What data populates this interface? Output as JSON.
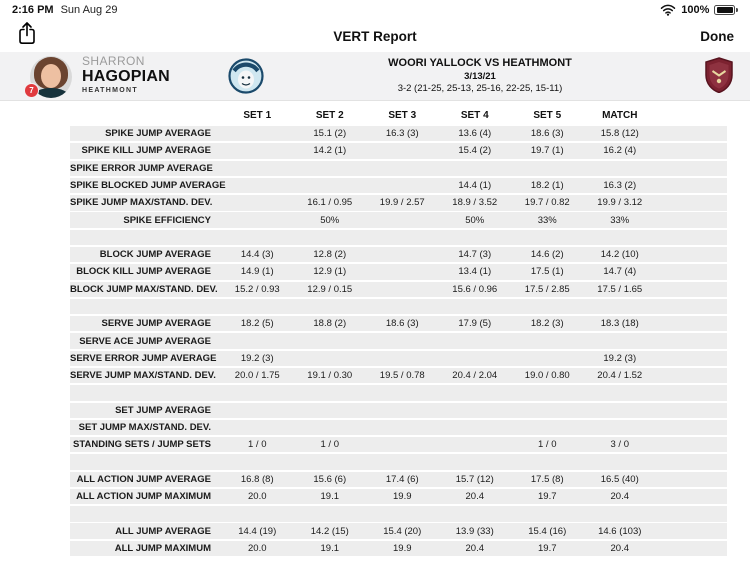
{
  "status_bar": {
    "time": "2:16 PM",
    "date": "Sun Aug 29",
    "battery_percent": "100%"
  },
  "nav": {
    "title": "VERT Report",
    "done_label": "Done"
  },
  "icons": {
    "share": "share-icon",
    "wifi": "wifi-icon",
    "battery": "battery-icon",
    "home_logo": "woori-yallock-logo",
    "away_logo": "heathmont-logo"
  },
  "colors": {
    "row_gray": "#ededed",
    "header_gray": "#f2f2f3",
    "badge_red": "#e03a3e",
    "heathmont_maroon": "#7c2230",
    "woori_blue": "#1b4a6b"
  },
  "player": {
    "first_name": "SHARRON",
    "last_name": "HAGOPIAN",
    "team": "HEATHMONT",
    "jersey_number": "7"
  },
  "match": {
    "title": "WOORI YALLOCK VS HEATHMONT",
    "date": "3/13/21",
    "score": "3-2 (21-25, 25-13, 25-16, 22-25, 15-11)"
  },
  "table": {
    "columns": [
      "SET 1",
      "SET 2",
      "SET 3",
      "SET 4",
      "SET 5",
      "MATCH"
    ],
    "rows": [
      {
        "label": "SPIKE JUMP AVERAGE",
        "values": [
          "",
          "15.1 (2)",
          "16.3 (3)",
          "13.6 (4)",
          "18.6 (3)",
          "15.8 (12)"
        ]
      },
      {
        "label": "SPIKE KILL JUMP AVERAGE",
        "values": [
          "",
          "14.2 (1)",
          "",
          "15.4 (2)",
          "19.7 (1)",
          "16.2 (4)"
        ]
      },
      {
        "label": "SPIKE ERROR JUMP AVERAGE",
        "values": [
          "",
          "",
          "",
          "",
          "",
          ""
        ]
      },
      {
        "label": "SPIKE BLOCKED JUMP AVERAGE",
        "values": [
          "",
          "",
          "",
          "14.4 (1)",
          "18.2 (1)",
          "16.3 (2)"
        ]
      },
      {
        "label": "SPIKE JUMP MAX/STAND. DEV.",
        "values": [
          "",
          "16.1 / 0.95",
          "19.9 / 2.57",
          "18.9 / 3.52",
          "19.7 / 0.82",
          "19.9 / 3.12"
        ]
      },
      {
        "label": "SPIKE EFFICIENCY",
        "values": [
          "",
          "50%",
          "",
          "50%",
          "33%",
          "33%"
        ]
      },
      {
        "spacer": true
      },
      {
        "label": "BLOCK JUMP AVERAGE",
        "values": [
          "14.4 (3)",
          "12.8 (2)",
          "",
          "14.7 (3)",
          "14.6 (2)",
          "14.2 (10)"
        ]
      },
      {
        "label": "BLOCK KILL JUMP AVERAGE",
        "values": [
          "14.9 (1)",
          "12.9 (1)",
          "",
          "13.4 (1)",
          "17.5 (1)",
          "14.7 (4)"
        ]
      },
      {
        "label": "BLOCK JUMP MAX/STAND. DEV.",
        "values": [
          "15.2 / 0.93",
          "12.9 / 0.15",
          "",
          "15.6 / 0.96",
          "17.5 / 2.85",
          "17.5 / 1.65"
        ]
      },
      {
        "spacer": true
      },
      {
        "label": "SERVE JUMP AVERAGE",
        "values": [
          "18.2 (5)",
          "18.8 (2)",
          "18.6 (3)",
          "17.9 (5)",
          "18.2 (3)",
          "18.3 (18)"
        ]
      },
      {
        "label": "SERVE ACE JUMP AVERAGE",
        "values": [
          "",
          "",
          "",
          "",
          "",
          ""
        ]
      },
      {
        "label": "SERVE ERROR JUMP AVERAGE",
        "values": [
          "19.2 (3)",
          "",
          "",
          "",
          "",
          "19.2 (3)"
        ]
      },
      {
        "label": "SERVE JUMP MAX/STAND. DEV.",
        "values": [
          "20.0 / 1.75",
          "19.1 / 0.30",
          "19.5 / 0.78",
          "20.4 / 2.04",
          "19.0 / 0.80",
          "20.4 / 1.52"
        ]
      },
      {
        "spacer": true
      },
      {
        "label": "SET JUMP AVERAGE",
        "values": [
          "",
          "",
          "",
          "",
          "",
          ""
        ]
      },
      {
        "label": "SET JUMP MAX/STAND. DEV.",
        "values": [
          "",
          "",
          "",
          "",
          "",
          ""
        ]
      },
      {
        "label": "STANDING SETS / JUMP SETS",
        "values": [
          "1 / 0",
          "1 / 0",
          "",
          "",
          "1 / 0",
          "3 / 0"
        ]
      },
      {
        "spacer": true
      },
      {
        "label": "ALL ACTION JUMP AVERAGE",
        "values": [
          "16.8 (8)",
          "15.6 (6)",
          "17.4 (6)",
          "15.7 (12)",
          "17.5 (8)",
          "16.5 (40)"
        ]
      },
      {
        "label": "ALL ACTION JUMP MAXIMUM",
        "values": [
          "20.0",
          "19.1",
          "19.9",
          "20.4",
          "19.7",
          "20.4"
        ]
      },
      {
        "spacer": true
      },
      {
        "label": "ALL JUMP AVERAGE",
        "values": [
          "14.4 (19)",
          "14.2 (15)",
          "15.4 (20)",
          "13.9 (33)",
          "15.4 (16)",
          "14.6 (103)"
        ]
      },
      {
        "label": "ALL JUMP MAXIMUM",
        "values": [
          "20.0",
          "19.1",
          "19.9",
          "20.4",
          "19.7",
          "20.4"
        ]
      }
    ]
  }
}
